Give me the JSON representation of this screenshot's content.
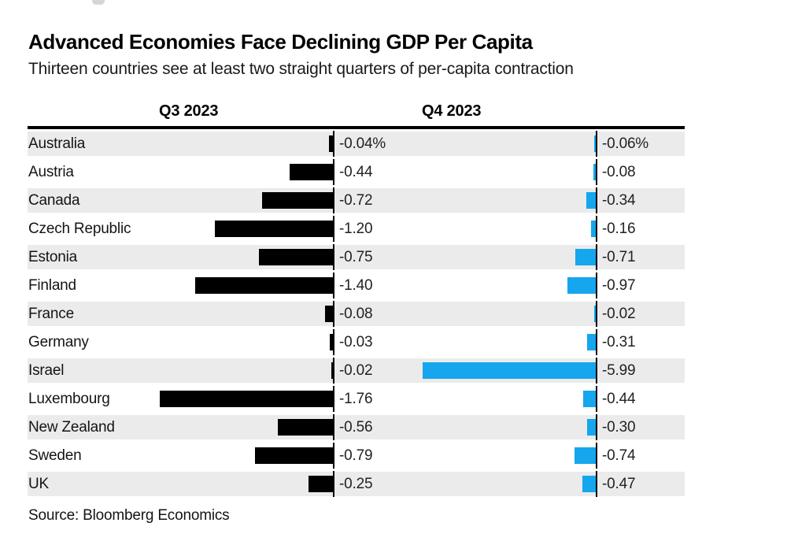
{
  "page": {
    "title": "Advanced Economies Face Declining GDP Per Capita",
    "subtitle": "Thirteen countries see at least two straight quarters of per-capita contraction",
    "source": "Source: Bloomberg Economics"
  },
  "columns": [
    {
      "label": "Q3 2023"
    },
    {
      "label": "Q4 2023"
    }
  ],
  "colors": {
    "q3_bar": "#000000",
    "q4_bar": "#15a6ee",
    "row_alt_background": "#ebebeb",
    "header_rule": "#000000"
  },
  "chart_data": {
    "type": "bar",
    "orientation": "horizontal",
    "title": "Advanced Economies Face Declining GDP Per Capita",
    "subtitle": "Thirteen countries see at least two straight quarters of per-capita contraction",
    "source": "Source: Bloomberg Economics",
    "unit": "%",
    "value_label_position": "right of baseline",
    "legend": "column headers above chart",
    "grid": false,
    "categories": [
      "Australia",
      "Austria",
      "Canada",
      "Czech Republic",
      "Estonia",
      "Finland",
      "France",
      "Germany",
      "Israel",
      "Luxembourg",
      "New Zealand",
      "Sweden",
      "UK"
    ],
    "series": [
      {
        "name": "Q3 2023",
        "color": "#000000",
        "axis_range": [
          -1.76,
          0
        ],
        "values": [
          -0.04,
          -0.44,
          -0.72,
          -1.2,
          -0.75,
          -1.4,
          -0.08,
          -0.03,
          -0.02,
          -1.76,
          -0.56,
          -0.79,
          -0.25
        ],
        "labels": [
          "-0.04%",
          "-0.44",
          "-0.72",
          "-1.20",
          "-0.75",
          "-1.40",
          "-0.08",
          "-0.03",
          "-0.02",
          "-1.76",
          "-0.56",
          "-0.79",
          "-0.25"
        ]
      },
      {
        "name": "Q4 2023",
        "color": "#15a6ee",
        "axis_range": [
          -5.99,
          0
        ],
        "values": [
          -0.06,
          -0.08,
          -0.34,
          -0.16,
          -0.71,
          -0.97,
          -0.02,
          -0.31,
          -5.99,
          -0.44,
          -0.3,
          -0.74,
          -0.47
        ],
        "labels": [
          "-0.06%",
          "-0.08",
          "-0.34",
          "-0.16",
          "-0.71",
          "-0.97",
          "-0.02",
          "-0.31",
          "-5.99",
          "-0.44",
          "-0.30",
          "-0.74",
          "-0.47"
        ]
      }
    ]
  }
}
